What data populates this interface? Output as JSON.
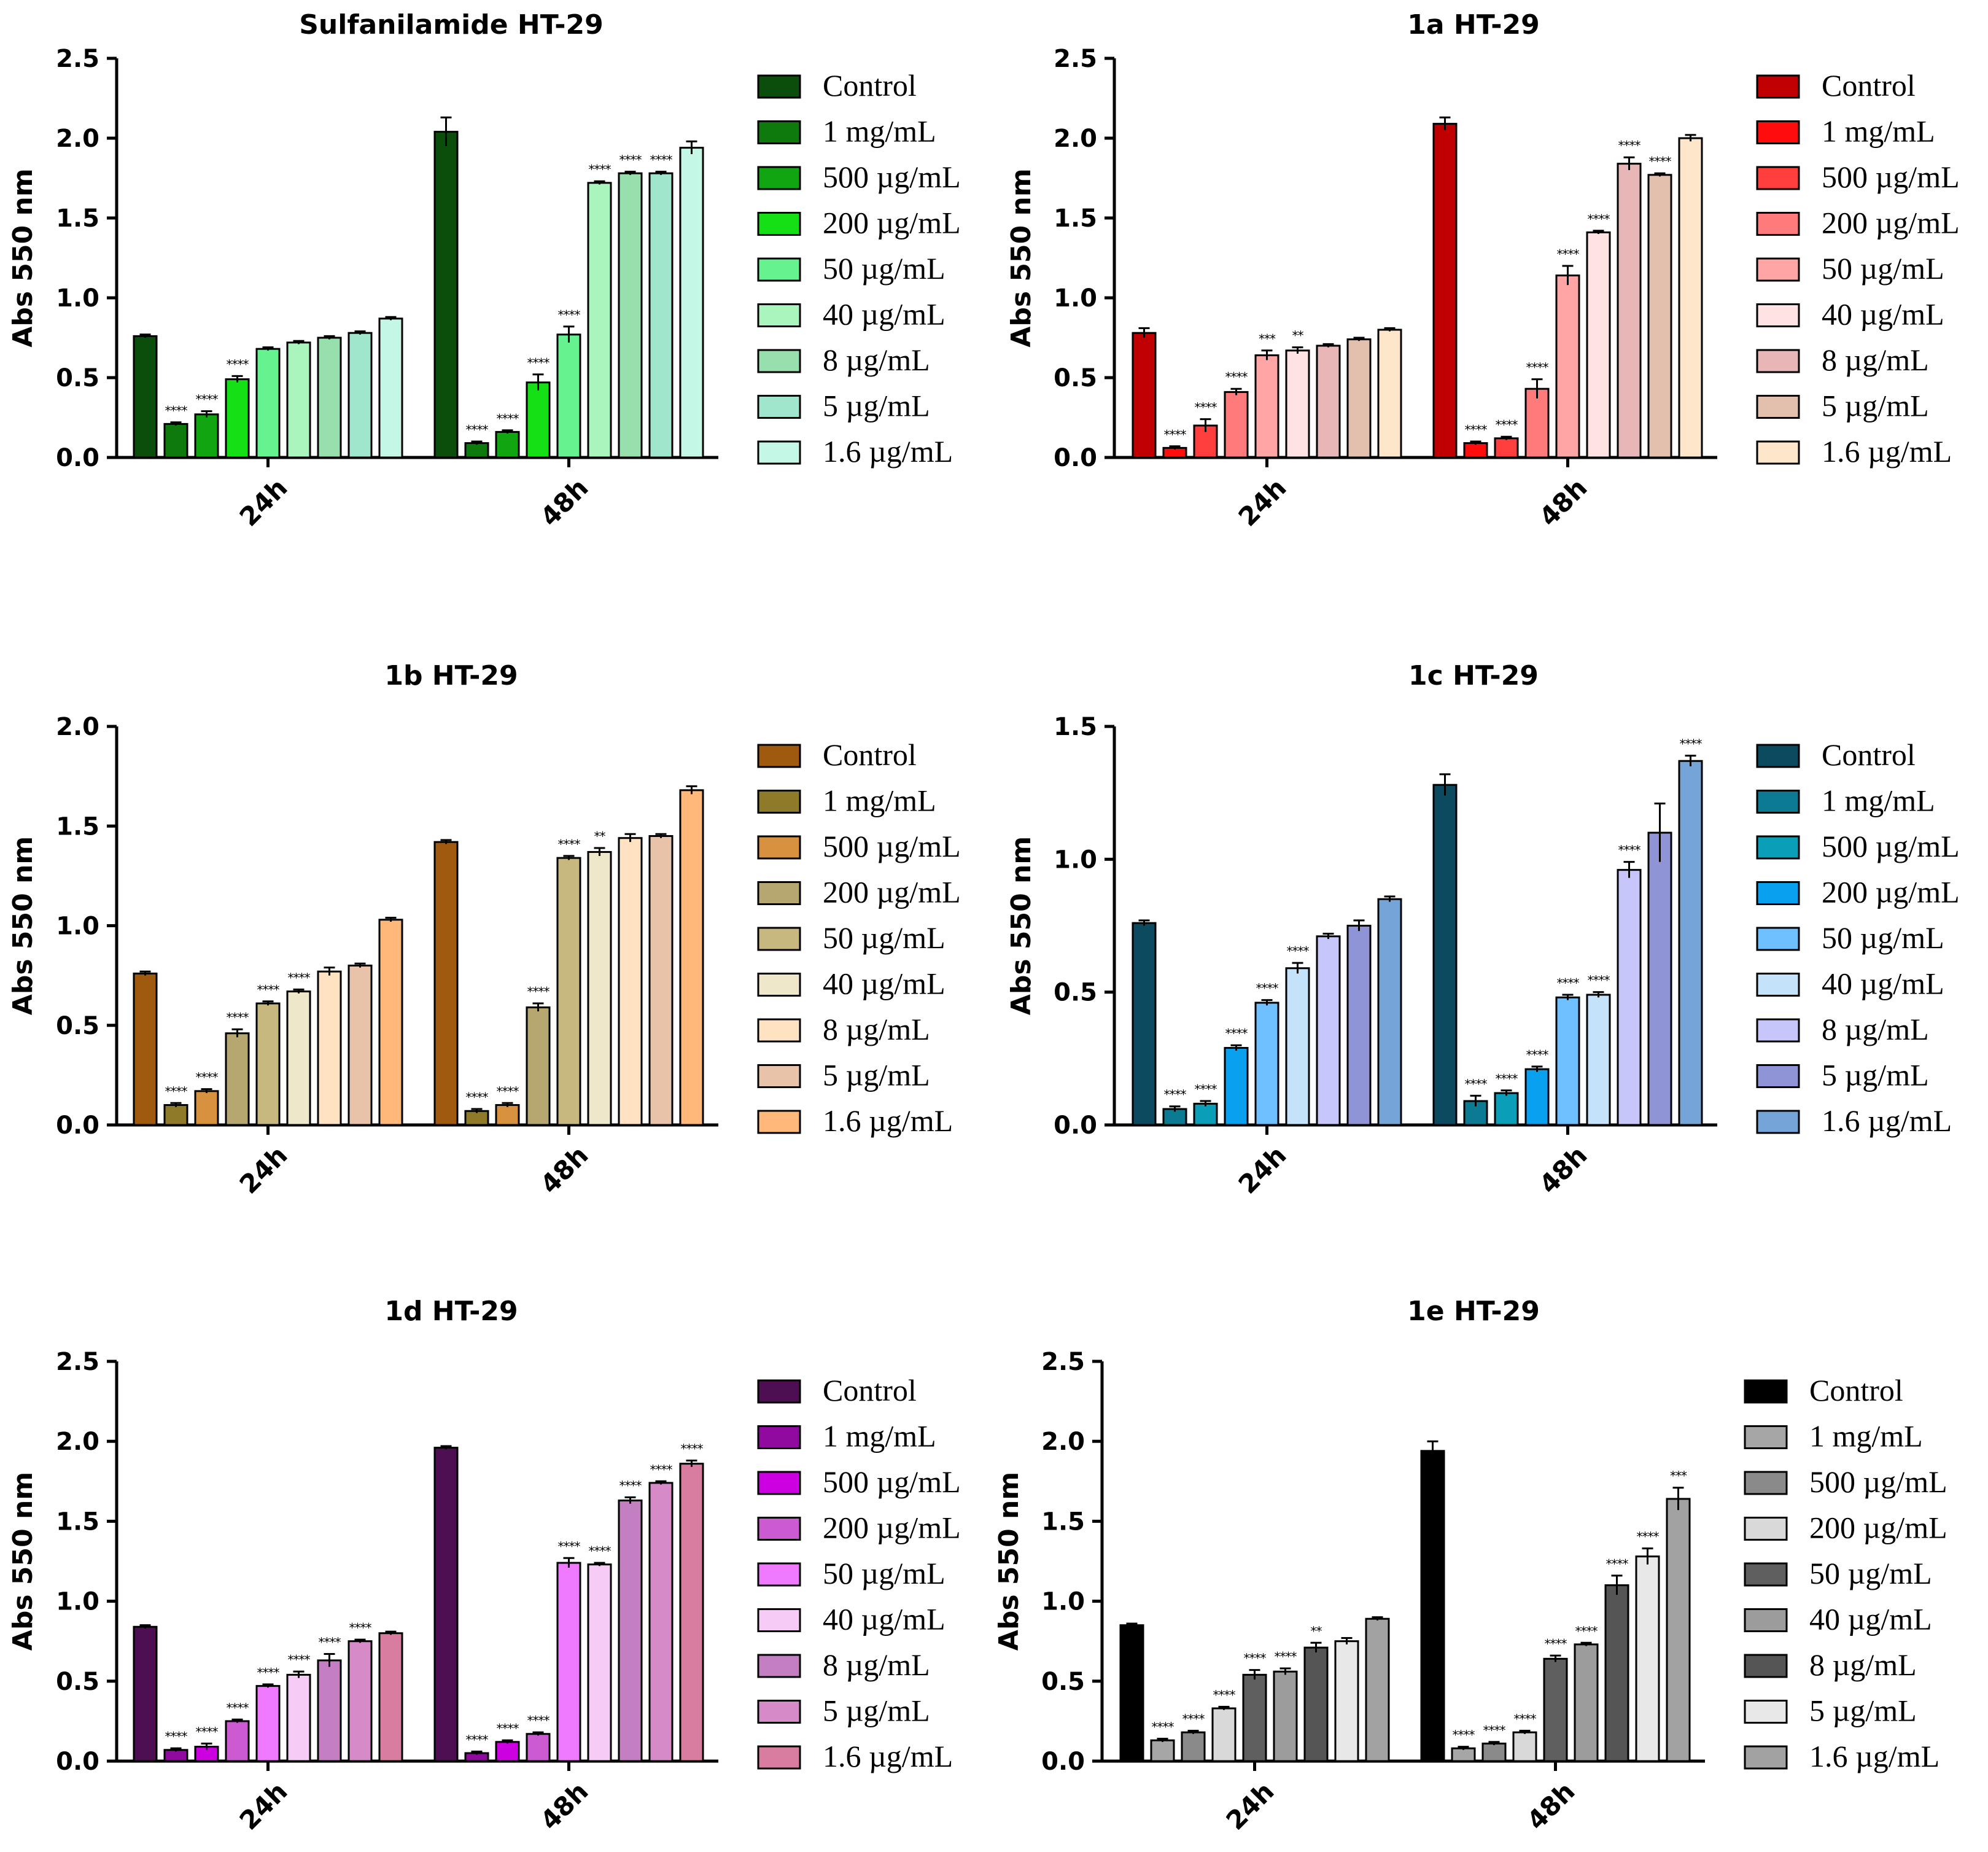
{
  "legend_labels": [
    "Control",
    "1 mg/mL",
    "500 µg/mL",
    "200 µg/mL",
    "50 µg/mL",
    "40 µg/mL",
    "8 µg/mL",
    "5 µg/mL",
    "1.6 µg/mL"
  ],
  "chart_data": [
    {
      "type": "bar",
      "title": "Sulfanilamide HT-29",
      "ylabel": "Abs 550 nm",
      "xlabel": "",
      "categories": [
        "24h",
        "48h"
      ],
      "ylim": [
        0,
        2.5
      ],
      "yticks": [
        "0.0",
        "0.5",
        "1.0",
        "1.5",
        "2.0",
        "2.5"
      ],
      "colors": [
        "#0b4d0b",
        "#0e7a0e",
        "#11a611",
        "#15e015",
        "#66f28f",
        "#aaf5be",
        "#98dfae",
        "#9fe6cc",
        "#c4f7e6"
      ],
      "series": [
        {
          "name": "Control",
          "values": [
            0.76,
            2.04
          ],
          "errors": [
            0.01,
            0.09
          ],
          "stars": [
            "",
            ""
          ]
        },
        {
          "name": "1 mg/mL",
          "values": [
            0.21,
            0.09
          ],
          "errors": [
            0.01,
            0.01
          ],
          "stars": [
            "****",
            "****"
          ]
        },
        {
          "name": "500 µg/mL",
          "values": [
            0.27,
            0.16
          ],
          "errors": [
            0.02,
            0.01
          ],
          "stars": [
            "****",
            "****"
          ]
        },
        {
          "name": "200 µg/mL",
          "values": [
            0.49,
            0.47
          ],
          "errors": [
            0.02,
            0.05
          ],
          "stars": [
            "****",
            "****"
          ]
        },
        {
          "name": "50 µg/mL",
          "values": [
            0.68,
            0.77
          ],
          "errors": [
            0.01,
            0.05
          ],
          "stars": [
            "",
            "****"
          ]
        },
        {
          "name": "40 µg/mL",
          "values": [
            0.72,
            1.72
          ],
          "errors": [
            0.01,
            0.01
          ],
          "stars": [
            "",
            "****"
          ]
        },
        {
          "name": "8 µg/mL",
          "values": [
            0.75,
            1.78
          ],
          "errors": [
            0.01,
            0.01
          ],
          "stars": [
            "",
            "****"
          ]
        },
        {
          "name": "5 µg/mL",
          "values": [
            0.78,
            1.78
          ],
          "errors": [
            0.01,
            0.01
          ],
          "stars": [
            "",
            "****"
          ]
        },
        {
          "name": "1.6 µg/mL",
          "values": [
            0.87,
            1.94
          ],
          "errors": [
            0.01,
            0.04
          ],
          "stars": [
            "",
            ""
          ]
        }
      ]
    },
    {
      "type": "bar",
      "title": "1a HT-29",
      "ylabel": "Abs 550 nm",
      "xlabel": "",
      "categories": [
        "24h",
        "48h"
      ],
      "ylim": [
        0,
        2.5
      ],
      "yticks": [
        "0.0",
        "0.5",
        "1.0",
        "1.5",
        "2.0",
        "2.5"
      ],
      "colors": [
        "#c00000",
        "#ff0c0c",
        "#ff3e3e",
        "#ff7a7a",
        "#ffa5a5",
        "#ffe2e2",
        "#e8b6b6",
        "#e2c0ad",
        "#fde6c9"
      ],
      "series": [
        {
          "name": "Control",
          "values": [
            0.78,
            2.09
          ],
          "errors": [
            0.03,
            0.04
          ],
          "stars": [
            "",
            ""
          ]
        },
        {
          "name": "1 mg/mL",
          "values": [
            0.06,
            0.09
          ],
          "errors": [
            0.01,
            0.01
          ],
          "stars": [
            "****",
            "****"
          ]
        },
        {
          "name": "500 µg/mL",
          "values": [
            0.2,
            0.12
          ],
          "errors": [
            0.04,
            0.01
          ],
          "stars": [
            "****",
            "****"
          ]
        },
        {
          "name": "200 µg/mL",
          "values": [
            0.41,
            0.43
          ],
          "errors": [
            0.02,
            0.06
          ],
          "stars": [
            "****",
            "****"
          ]
        },
        {
          "name": "50 µg/mL",
          "values": [
            0.64,
            1.14
          ],
          "errors": [
            0.03,
            0.06
          ],
          "stars": [
            "***",
            "****"
          ]
        },
        {
          "name": "40 µg/mL",
          "values": [
            0.67,
            1.41
          ],
          "errors": [
            0.02,
            0.01
          ],
          "stars": [
            "**",
            "****"
          ]
        },
        {
          "name": "8 µg/mL",
          "values": [
            0.7,
            1.84
          ],
          "errors": [
            0.01,
            0.04
          ],
          "stars": [
            "",
            "****"
          ]
        },
        {
          "name": "5 µg/mL",
          "values": [
            0.74,
            1.77
          ],
          "errors": [
            0.01,
            0.01
          ],
          "stars": [
            "",
            "****"
          ]
        },
        {
          "name": "1.6 µg/mL",
          "values": [
            0.8,
            2.0
          ],
          "errors": [
            0.01,
            0.02
          ],
          "stars": [
            "",
            ""
          ]
        }
      ]
    },
    {
      "type": "bar",
      "title": "1b HT-29",
      "ylabel": "Abs 550 nm",
      "xlabel": "",
      "categories": [
        "24h",
        "48h"
      ],
      "ylim": [
        0,
        2.0
      ],
      "yticks": [
        "0.0",
        "0.5",
        "1.0",
        "1.5",
        "2.0"
      ],
      "colors": [
        "#a05a10",
        "#8e7a28",
        "#d8913e",
        "#b6a670",
        "#c6b87e",
        "#efe7c9",
        "#ffe2c2",
        "#e8c3aa",
        "#ffb87a"
      ],
      "series": [
        {
          "name": "Control",
          "values": [
            0.76,
            1.42
          ],
          "errors": [
            0.01,
            0.01
          ],
          "stars": [
            "",
            ""
          ]
        },
        {
          "name": "1 mg/mL",
          "values": [
            0.1,
            0.07
          ],
          "errors": [
            0.01,
            0.01
          ],
          "stars": [
            "****",
            "****"
          ]
        },
        {
          "name": "500 µg/mL",
          "values": [
            0.17,
            0.1
          ],
          "errors": [
            0.01,
            0.01
          ],
          "stars": [
            "****",
            "****"
          ]
        },
        {
          "name": "200 µg/mL",
          "values": [
            0.46,
            0.59
          ],
          "errors": [
            0.02,
            0.02
          ],
          "stars": [
            "****",
            "****"
          ]
        },
        {
          "name": "50 µg/mL",
          "values": [
            0.61,
            1.34
          ],
          "errors": [
            0.01,
            0.01
          ],
          "stars": [
            "****",
            "****"
          ]
        },
        {
          "name": "40 µg/mL",
          "values": [
            0.67,
            1.37
          ],
          "errors": [
            0.01,
            0.02
          ],
          "stars": [
            "****",
            "**"
          ]
        },
        {
          "name": "8 µg/mL",
          "values": [
            0.77,
            1.44
          ],
          "errors": [
            0.02,
            0.02
          ],
          "stars": [
            "",
            ""
          ]
        },
        {
          "name": "5 µg/mL",
          "values": [
            0.8,
            1.45
          ],
          "errors": [
            0.01,
            0.01
          ],
          "stars": [
            "",
            ""
          ]
        },
        {
          "name": "1.6 µg/mL",
          "values": [
            1.03,
            1.68
          ],
          "errors": [
            0.01,
            0.02
          ],
          "stars": [
            "",
            ""
          ]
        }
      ]
    },
    {
      "type": "bar",
      "title": "1c HT-29",
      "ylabel": "Abs 550 nm",
      "xlabel": "",
      "categories": [
        "24h",
        "48h"
      ],
      "ylim": [
        0,
        1.5
      ],
      "yticks": [
        "0.0",
        "0.5",
        "1.0",
        "1.5"
      ],
      "colors": [
        "#0c4a60",
        "#0b7a92",
        "#0a9eb8",
        "#0aa0f0",
        "#6ec0ff",
        "#c4e2fa",
        "#c6c6fa",
        "#8f94d6",
        "#74a4d8"
      ],
      "series": [
        {
          "name": "Control",
          "values": [
            0.76,
            1.28
          ],
          "errors": [
            0.01,
            0.04
          ],
          "stars": [
            "",
            ""
          ]
        },
        {
          "name": "1 mg/mL",
          "values": [
            0.06,
            0.09
          ],
          "errors": [
            0.01,
            0.02
          ],
          "stars": [
            "****",
            "****"
          ]
        },
        {
          "name": "500 µg/mL",
          "values": [
            0.08,
            0.12
          ],
          "errors": [
            0.01,
            0.01
          ],
          "stars": [
            "****",
            "****"
          ]
        },
        {
          "name": "200 µg/mL",
          "values": [
            0.29,
            0.21
          ],
          "errors": [
            0.01,
            0.01
          ],
          "stars": [
            "****",
            "****"
          ]
        },
        {
          "name": "50 µg/mL",
          "values": [
            0.46,
            0.48
          ],
          "errors": [
            0.01,
            0.01
          ],
          "stars": [
            "****",
            "****"
          ]
        },
        {
          "name": "40 µg/mL",
          "values": [
            0.59,
            0.49
          ],
          "errors": [
            0.02,
            0.01
          ],
          "stars": [
            "****",
            "****"
          ]
        },
        {
          "name": "8 µg/mL",
          "values": [
            0.71,
            0.96
          ],
          "errors": [
            0.01,
            0.03
          ],
          "stars": [
            "",
            "****"
          ]
        },
        {
          "name": "5 µg/mL",
          "values": [
            0.75,
            1.1
          ],
          "errors": [
            0.02,
            0.11
          ],
          "stars": [
            "",
            ""
          ]
        },
        {
          "name": "1.6 µg/mL",
          "values": [
            0.85,
            1.37
          ],
          "errors": [
            0.01,
            0.02
          ],
          "stars": [
            "",
            "****"
          ]
        }
      ]
    },
    {
      "type": "bar",
      "title": "1d HT-29",
      "ylabel": "Abs 550 nm",
      "xlabel": "",
      "categories": [
        "24h",
        "48h"
      ],
      "ylim": [
        0,
        2.5
      ],
      "yticks": [
        "0.0",
        "0.5",
        "1.0",
        "1.5",
        "2.0",
        "2.5"
      ],
      "colors": [
        "#4d0f52",
        "#900aa0",
        "#cc00e0",
        "#cc5ad0",
        "#f07aff",
        "#f6ccf6",
        "#c47ec2",
        "#d68ac8",
        "#d87ca0"
      ],
      "series": [
        {
          "name": "Control",
          "values": [
            0.84,
            1.96
          ],
          "errors": [
            0.01,
            0.01
          ],
          "stars": [
            "",
            ""
          ]
        },
        {
          "name": "1 mg/mL",
          "values": [
            0.07,
            0.05
          ],
          "errors": [
            0.01,
            0.01
          ],
          "stars": [
            "****",
            "****"
          ]
        },
        {
          "name": "500 µg/mL",
          "values": [
            0.09,
            0.12
          ],
          "errors": [
            0.02,
            0.01
          ],
          "stars": [
            "****",
            "****"
          ]
        },
        {
          "name": "200 µg/mL",
          "values": [
            0.25,
            0.17
          ],
          "errors": [
            0.01,
            0.01
          ],
          "stars": [
            "****",
            "****"
          ]
        },
        {
          "name": "50 µg/mL",
          "values": [
            0.47,
            1.24
          ],
          "errors": [
            0.01,
            0.03
          ],
          "stars": [
            "****",
            "****"
          ]
        },
        {
          "name": "40 µg/mL",
          "values": [
            0.54,
            1.23
          ],
          "errors": [
            0.02,
            0.01
          ],
          "stars": [
            "****",
            "****"
          ]
        },
        {
          "name": "8 µg/mL",
          "values": [
            0.63,
            1.63
          ],
          "errors": [
            0.04,
            0.02
          ],
          "stars": [
            "****",
            "****"
          ]
        },
        {
          "name": "5 µg/mL",
          "values": [
            0.75,
            1.74
          ],
          "errors": [
            0.01,
            0.01
          ],
          "stars": [
            "****",
            "****"
          ]
        },
        {
          "name": "1.6 µg/mL",
          "values": [
            0.8,
            1.86
          ],
          "errors": [
            0.01,
            0.02
          ],
          "stars": [
            "",
            "****"
          ]
        }
      ]
    },
    {
      "type": "bar",
      "title": "1e HT-29",
      "ylabel": "Abs 550 nm",
      "xlabel": "",
      "categories": [
        "24h",
        "48h"
      ],
      "ylim": [
        0,
        2.5
      ],
      "yticks": [
        "0.0",
        "0.5",
        "1.0",
        "1.5",
        "2.0",
        "2.5"
      ],
      "colors": [
        "#000000",
        "#a6a6a6",
        "#8a8a8a",
        "#d9d9d9",
        "#5f5f5f",
        "#9c9c9c",
        "#555555",
        "#e8e8e8",
        "#a2a2a2"
      ],
      "series": [
        {
          "name": "Control",
          "values": [
            0.85,
            1.94
          ],
          "errors": [
            0.01,
            0.06
          ],
          "stars": [
            "",
            ""
          ]
        },
        {
          "name": "1 mg/mL",
          "values": [
            0.13,
            0.08
          ],
          "errors": [
            0.01,
            0.01
          ],
          "stars": [
            "****",
            "****"
          ]
        },
        {
          "name": "500 µg/mL",
          "values": [
            0.18,
            0.11
          ],
          "errors": [
            0.01,
            0.01
          ],
          "stars": [
            "****",
            "****"
          ]
        },
        {
          "name": "200 µg/mL",
          "values": [
            0.33,
            0.18
          ],
          "errors": [
            0.01,
            0.01
          ],
          "stars": [
            "****",
            "****"
          ]
        },
        {
          "name": "50 µg/mL",
          "values": [
            0.54,
            0.64
          ],
          "errors": [
            0.03,
            0.02
          ],
          "stars": [
            "****",
            "****"
          ]
        },
        {
          "name": "40 µg/mL",
          "values": [
            0.56,
            0.73
          ],
          "errors": [
            0.02,
            0.01
          ],
          "stars": [
            "****",
            "****"
          ]
        },
        {
          "name": "8 µg/mL",
          "values": [
            0.71,
            1.1
          ],
          "errors": [
            0.03,
            0.06
          ],
          "stars": [
            "**",
            "****"
          ]
        },
        {
          "name": "5 µg/mL",
          "values": [
            0.75,
            1.28
          ],
          "errors": [
            0.02,
            0.05
          ],
          "stars": [
            "",
            "****"
          ]
        },
        {
          "name": "1.6 µg/mL",
          "values": [
            0.89,
            1.64
          ],
          "errors": [
            0.01,
            0.07
          ],
          "stars": [
            "",
            "***"
          ]
        }
      ]
    }
  ]
}
